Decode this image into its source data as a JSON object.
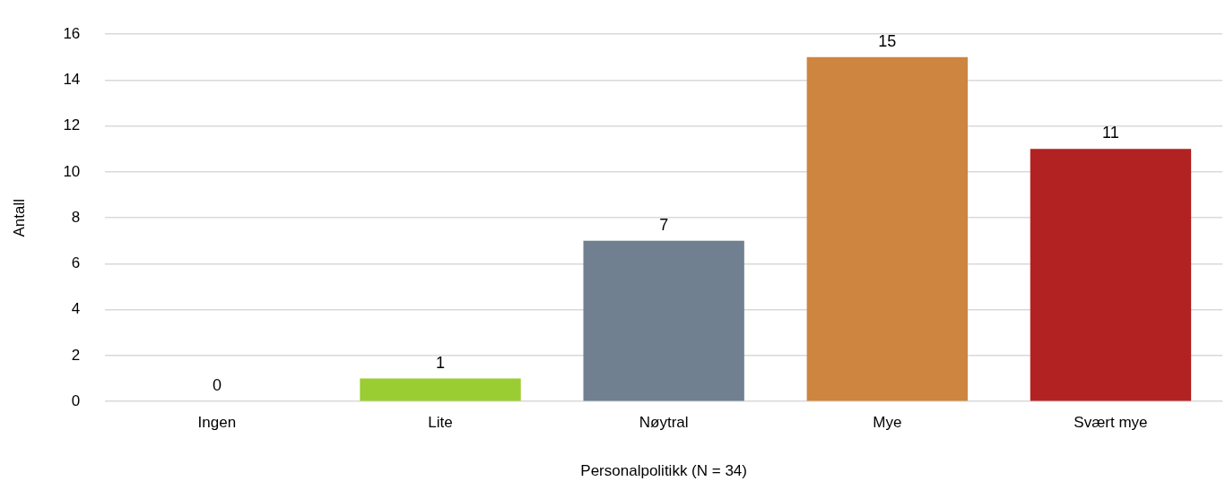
{
  "chart_data": {
    "type": "bar",
    "xlabel": "Personalpolitikk (N = 34)",
    "ylabel": "Antall",
    "categories": [
      "Ingen",
      "Lite",
      "Nøytral",
      "Mye",
      "Svært mye"
    ],
    "values": [
      0,
      1,
      7,
      15,
      11
    ],
    "colors": [
      "#4472c4",
      "#9acd32",
      "#708090",
      "#cd853f",
      "#b22222"
    ],
    "ylim": [
      0,
      16
    ],
    "yticks": [
      0,
      2,
      4,
      6,
      8,
      10,
      12,
      14,
      16
    ],
    "grid": "y",
    "legend": false,
    "data_labels": true
  }
}
